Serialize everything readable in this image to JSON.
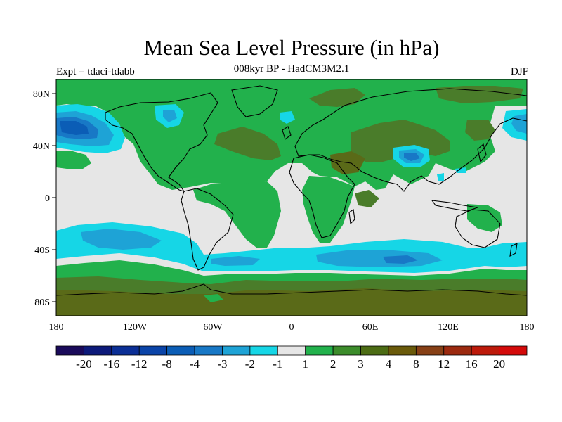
{
  "title": "Mean Sea Level Pressure (in hPa)",
  "subtitle": "008kyr BP - HadCM3M2.1",
  "left_label": "Expt = tdaci-tdabb",
  "right_label": "DJF",
  "x_ticks": [
    "180",
    "120W",
    "60W",
    "0",
    "60E",
    "120E",
    "180"
  ],
  "y_ticks": [
    "80N",
    "40N",
    "0",
    "40S",
    "80S"
  ],
  "colorbar": {
    "labels": [
      "-20",
      "-16",
      "-12",
      "-8",
      "-4",
      "-3",
      "-2",
      "-1",
      "1",
      "2",
      "3",
      "4",
      "8",
      "12",
      "16",
      "20"
    ],
    "colors": [
      "#1a0a5a",
      "#0d1a7a",
      "#0b2f96",
      "#0a44a8",
      "#0b5db6",
      "#1878c6",
      "#1ea3d6",
      "#16d6e6",
      "#e6e6e6",
      "#22b14c",
      "#3c8c2b",
      "#4c6c14",
      "#6a5a0a",
      "#874016",
      "#9c2a10",
      "#bd1a0a",
      "#d40a0a"
    ]
  },
  "fills": {
    "ocean_base": "#e6e6e6",
    "green": "#22b14c",
    "dark_green": "#4a7c2a",
    "olive": "#5a6a18",
    "cyan": "#16d6e6",
    "sky": "#1ea3d6",
    "blue": "#1878c6",
    "deep_blue": "#0b5db6"
  }
}
